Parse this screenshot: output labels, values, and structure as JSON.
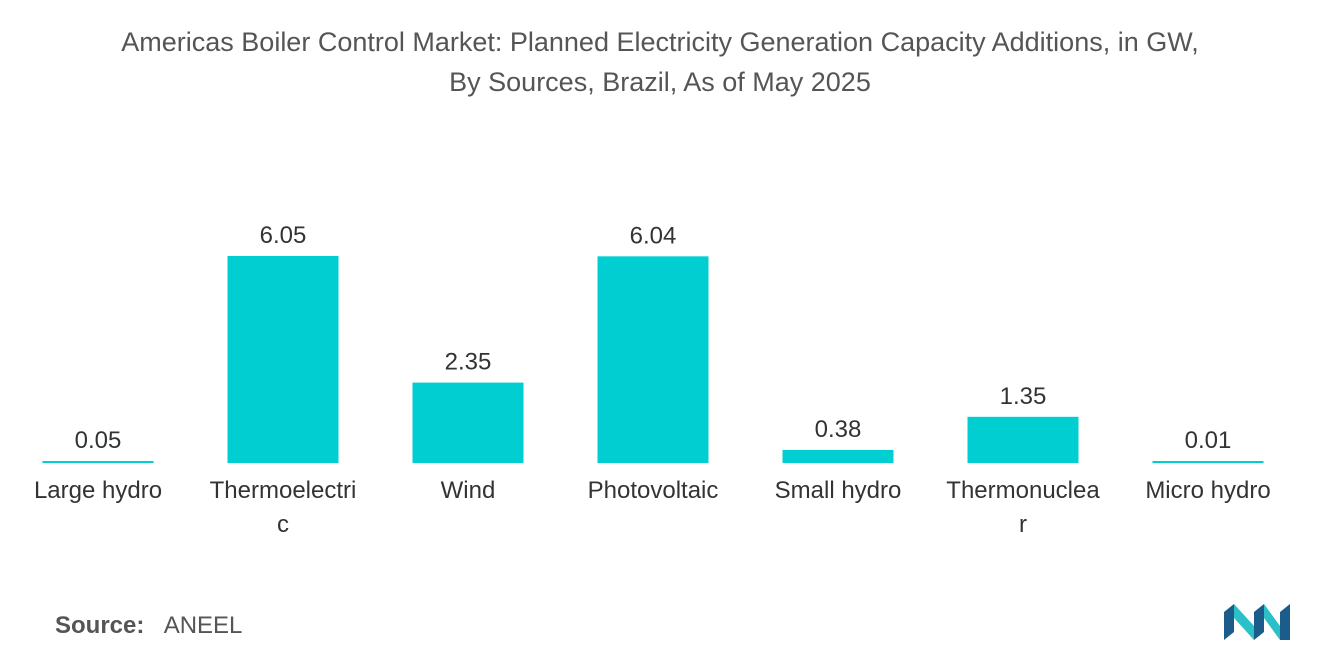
{
  "title_line1": "Americas Boiler Control Market: Planned Electricity Generation Capacity Additions, in GW,",
  "title_line2": "By Sources, Brazil, As of May 2025",
  "source_label": "Source:",
  "source_value": "ANEEL",
  "colors": {
    "bar": "#00CED1",
    "logo_dark": "#1B5C8A",
    "logo_light": "#2BBFC8"
  },
  "chart_data": {
    "type": "bar",
    "title": "Americas Boiler Control Market: Planned Electricity Generation Capacity Additions, in GW, By Sources, Brazil, As of May 2025",
    "xlabel": "",
    "ylabel": "",
    "ylim": [
      0,
      6.05
    ],
    "grid": false,
    "legend": "none",
    "categories": [
      "Large hydro",
      "Thermoelectric",
      "Wind",
      "Photovoltaic",
      "Small hydro",
      "Thermonuclear",
      "Micro hydro"
    ],
    "category_display": [
      [
        "Large hydro"
      ],
      [
        "Thermoelectri",
        "c"
      ],
      [
        "Wind"
      ],
      [
        "Photovoltaic"
      ],
      [
        "Small hydro"
      ],
      [
        "Thermonuclea",
        "r"
      ],
      [
        "Micro hydro"
      ]
    ],
    "values": [
      0.05,
      6.05,
      2.35,
      6.04,
      0.38,
      1.35,
      0.01
    ],
    "value_labels": [
      "0.05",
      "6.05",
      "2.35",
      "6.04",
      "0.38",
      "1.35",
      "0.01"
    ]
  }
}
